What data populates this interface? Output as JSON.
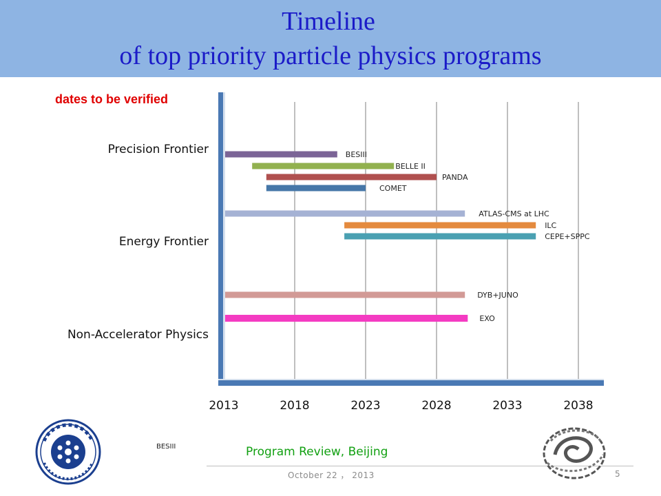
{
  "slide": {
    "title_line1": "Timeline",
    "title_line2": "of top priority particle physics programs",
    "note": "dates to be verified",
    "categories": [
      "Precision Frontier",
      "Energy Frontier",
      "Non-Accelerator Physics"
    ],
    "footer_left_label": "BESIII",
    "footer_center": "Program Review, Beijing",
    "footer_date": "October 22 ， 2013",
    "page_number": "5",
    "logos": [
      "chinese-academy-of-sciences-logo",
      "ihep-logo"
    ]
  },
  "colors": {
    "title_band": "#8eb4e3",
    "title_text": "#1b1bc8",
    "note": "#e00000",
    "axis": "#4a79b4",
    "footer_center": "#12a012"
  },
  "chart_data": {
    "type": "bar",
    "orientation": "horizontal-timeline",
    "x_ticks": [
      2013,
      2018,
      2023,
      2028,
      2033,
      2038
    ],
    "xlim": [
      2013,
      2040
    ],
    "grid": true,
    "bars": [
      {
        "label": "BESIII",
        "start": 2013,
        "end": 2021,
        "color": "#7b6496"
      },
      {
        "label": "BELLE II",
        "start": 2015,
        "end": 2025,
        "color": "#92b14f"
      },
      {
        "label": "PANDA",
        "start": 2016,
        "end": 2028,
        "color": "#b0504f"
      },
      {
        "label": "COMET",
        "start": 2016,
        "end": 2023,
        "color": "#4677a8"
      },
      {
        "label": "ATLAS-CMS at LHC",
        "start": 2013,
        "end": 2030,
        "color": "#a5b2d4"
      },
      {
        "label": "ILC",
        "start": 2021.5,
        "end": 2035,
        "color": "#e48a3e"
      },
      {
        "label": "CEPE+SPPC",
        "start": 2021.5,
        "end": 2035,
        "color": "#4aa0b2"
      },
      {
        "label": "DYB+JUNO",
        "start": 2013,
        "end": 2030,
        "color": "#d29a96"
      },
      {
        "label": "EXO",
        "start": 2013,
        "end": 2030.2,
        "color": "#f43bc2"
      }
    ]
  }
}
